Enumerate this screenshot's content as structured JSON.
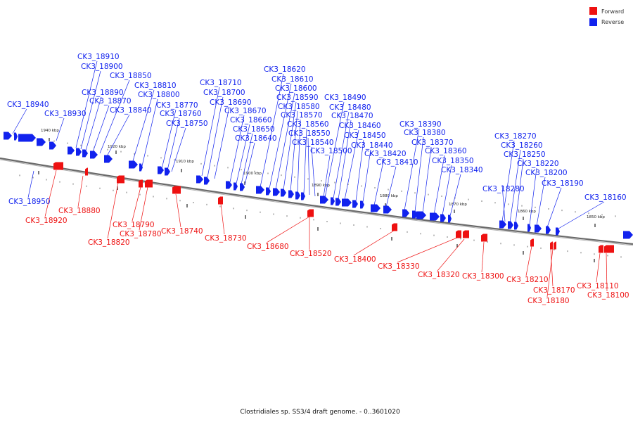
{
  "colors": {
    "forward": "#ee1111",
    "reverse": "#1122ee",
    "backbone": "#777777"
  },
  "legend": [
    {
      "label": "Forward",
      "strand": "forward"
    },
    {
      "label": "Reverse",
      "strand": "reverse"
    }
  ],
  "caption": "Clostridiales sp. SS3/4 draft genome. - 0..3601020",
  "kbp_ticks": [
    "1940 kbp",
    "1920 kbp",
    "1910 kbp",
    "1900 kbp",
    "1890 kbp",
    "1880 kbp",
    "1870 kbp",
    "1860 kbp",
    "1850 kbp"
  ],
  "reverse_genes": [
    "CK3_18940",
    "CK3_18930",
    "CK3_18910",
    "CK3_18900",
    "CK3_18890",
    "CK3_18870",
    "CK3_18850",
    "CK3_18840",
    "CK3_18810",
    "CK3_18800",
    "CK3_18770",
    "CK3_18760",
    "CK3_18750",
    "CK3_18710",
    "CK3_18700",
    "CK3_18690",
    "CK3_18670",
    "CK3_18660",
    "CK3_18650",
    "CK3_18640",
    "CK3_18620",
    "CK3_18610",
    "CK3_18600",
    "CK3_18590",
    "CK3_18580",
    "CK3_18570",
    "CK3_18560",
    "CK3_18550",
    "CK3_18540",
    "CK3_18500",
    "CK3_18490",
    "CK3_18480",
    "CK3_18470",
    "CK3_18460",
    "CK3_18450",
    "CK3_18440",
    "CK3_18420",
    "CK3_18410",
    "CK3_18390",
    "CK3_18380",
    "CK3_18370",
    "CK3_18360",
    "CK3_18350",
    "CK3_18340",
    "CK3_18270",
    "CK3_18260",
    "CK3_18250",
    "CK3_18220",
    "CK3_18200",
    "CK3_18190",
    "CK3_18160",
    "CK3_18950",
    "CK3_18280"
  ],
  "forward_genes": [
    "CK3_18920",
    "CK3_18880",
    "CK3_18820",
    "CK3_18790",
    "CK3_18780",
    "CK3_18740",
    "CK3_18730",
    "CK3_18680",
    "CK3_18520",
    "CK3_18400",
    "CK3_18330",
    "CK3_18320",
    "CK3_18300",
    "CK3_18210",
    "CK3_18170",
    "CK3_18180",
    "CK3_18110",
    "CK3_18100"
  ]
}
